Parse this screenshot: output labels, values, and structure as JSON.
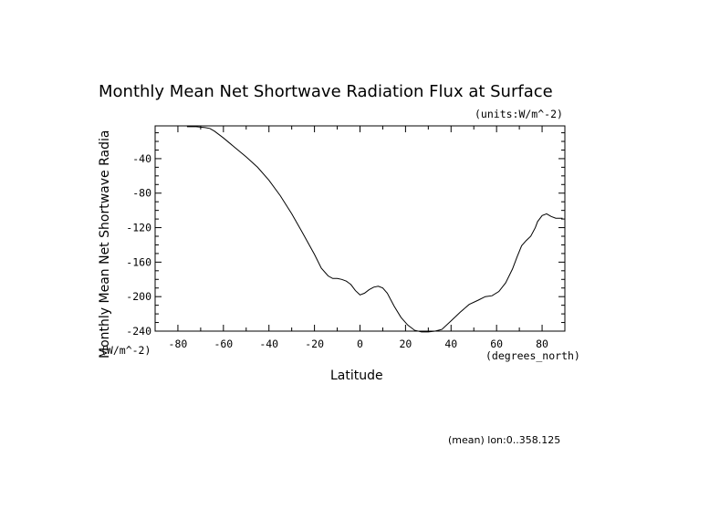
{
  "chart_data": {
    "type": "line",
    "title": "Monthly Mean Net Shortwave Radiation Flux at Surface",
    "units_label": "(units:W/m^-2)",
    "xlabel": "Latitude",
    "x_units": "(degrees_north)",
    "ylabel": "Monthly Mean Net Shortwave Radia",
    "y_units": "(W/m^-2)",
    "footnote": "(mean) lon:0..358.125",
    "xlim": [
      -90,
      90
    ],
    "ylim": [
      -240,
      -2
    ],
    "x_ticks": [
      -80,
      -60,
      -40,
      -20,
      0,
      20,
      40,
      60,
      80
    ],
    "y_ticks": [
      -40,
      -80,
      -120,
      -160,
      -200,
      -240
    ],
    "grid": false,
    "series": [
      {
        "x": [
          -76,
          -72,
          -68,
          -66,
          -64,
          -60,
          -55,
          -50,
          -45,
          -40,
          -35,
          -30,
          -25,
          -20,
          -17,
          -14,
          -12,
          -10,
          -8,
          -6,
          -4,
          -2,
          0,
          2,
          4,
          6,
          8,
          10,
          12,
          15,
          18,
          21,
          24,
          27,
          30,
          33,
          36,
          40,
          44,
          48,
          52,
          55,
          58,
          61,
          64,
          67,
          69,
          71,
          73,
          75,
          77,
          78,
          80,
          82,
          84,
          86,
          88,
          89
        ],
        "y": [
          -3,
          -3,
          -4,
          -5,
          -8,
          -16,
          -27,
          -38,
          -50,
          -65,
          -83,
          -104,
          -127,
          -151,
          -167,
          -176,
          -179,
          -179,
          -180,
          -182,
          -186,
          -193,
          -198,
          -196,
          -192,
          -189,
          -188,
          -190,
          -196,
          -211,
          -224,
          -233,
          -239,
          -241,
          -241,
          -240,
          -238,
          -228,
          -218,
          -209,
          -204,
          -200,
          -199,
          -194,
          -184,
          -168,
          -154,
          -141,
          -135,
          -130,
          -120,
          -113,
          -106,
          -104,
          -107,
          -109,
          -109,
          -109
        ]
      }
    ]
  }
}
